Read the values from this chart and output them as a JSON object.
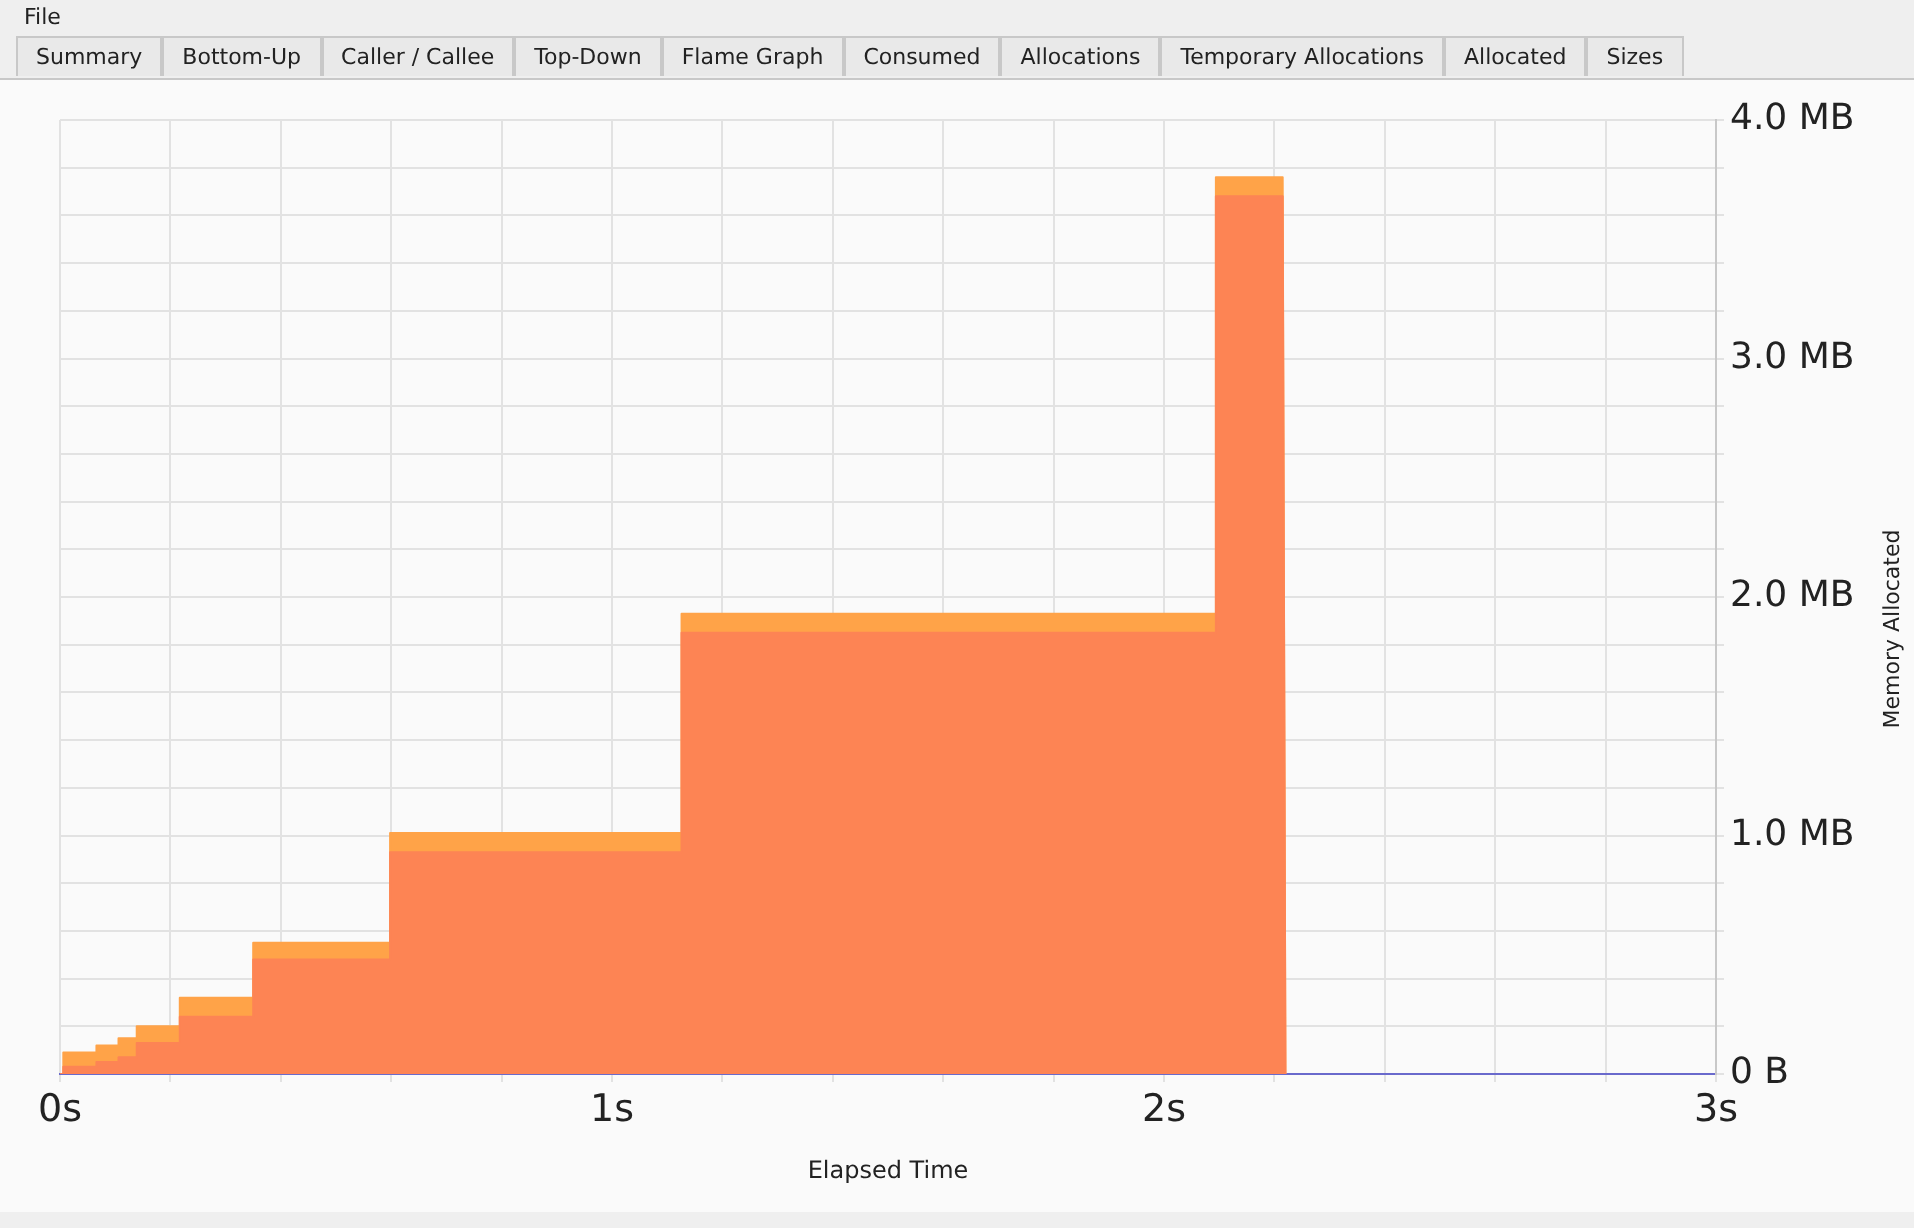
{
  "chart_data": {
    "type": "area",
    "stacked": true,
    "grid": true,
    "xlabel": "Elapsed Time",
    "ylabel": "Memory Allocated",
    "annotations": [
      "File",
      "Summary",
      "Bottom-Up",
      "Caller / Callee",
      "Top-Down",
      "Flame Graph",
      "Consumed",
      "Allocations",
      "Temporary Allocations",
      "Allocated",
      "Sizes"
    ],
    "x": [
      0,
      0.006,
      0.006,
      0.066,
      0.066,
      0.106,
      0.106,
      0.139,
      0.139,
      0.217,
      0.217,
      0.35,
      0.35,
      0.598,
      0.598,
      1.126,
      1.126,
      2.094,
      2.094,
      2.215,
      2.22
    ],
    "xlim": [
      0,
      3
    ],
    "xticks": [
      {
        "value": 0,
        "label": "0s"
      },
      {
        "value": 0.2,
        "label": null
      },
      {
        "value": 0.4,
        "label": null
      },
      {
        "value": 0.6,
        "label": null
      },
      {
        "value": 0.8,
        "label": null
      },
      {
        "value": 1,
        "label": "1s"
      },
      {
        "value": 1.2,
        "label": null
      },
      {
        "value": 1.4,
        "label": null
      },
      {
        "value": 1.6,
        "label": null
      },
      {
        "value": 1.8,
        "label": null
      },
      {
        "value": 2,
        "label": "2s"
      },
      {
        "value": 2.2,
        "label": null
      },
      {
        "value": 2.4,
        "label": null
      },
      {
        "value": 2.6,
        "label": null
      },
      {
        "value": 2.8,
        "label": null
      },
      {
        "value": 3,
        "label": "3s"
      }
    ],
    "ylim": [
      0,
      4
    ],
    "yticks": [
      {
        "value": 0,
        "label": "0 B"
      },
      {
        "value": 0.2,
        "label": null
      },
      {
        "value": 0.4,
        "label": null
      },
      {
        "value": 0.6,
        "label": null
      },
      {
        "value": 0.8,
        "label": null
      },
      {
        "value": 1,
        "label": "1.0 MB"
      },
      {
        "value": 1.2,
        "label": null
      },
      {
        "value": 1.4,
        "label": null
      },
      {
        "value": 1.6,
        "label": null
      },
      {
        "value": 1.8,
        "label": null
      },
      {
        "value": 2,
        "label": "2.0 MB"
      },
      {
        "value": 2.2,
        "label": null
      },
      {
        "value": 2.4,
        "label": null
      },
      {
        "value": 2.6,
        "label": null
      },
      {
        "value": 2.8,
        "label": null
      },
      {
        "value": 3,
        "label": "3.0 MB"
      },
      {
        "value": 3.2,
        "label": null
      },
      {
        "value": 3.4,
        "label": null
      },
      {
        "value": 3.6,
        "label": null
      },
      {
        "value": 3.8,
        "label": null
      },
      {
        "value": 4,
        "label": "4.0 MB"
      }
    ],
    "series": [
      {
        "color": "#fd8454",
        "values": [
          0,
          0,
          0.03,
          0.03,
          0.05,
          0.05,
          0.07,
          0.07,
          0.13,
          0.13,
          0.24,
          0.24,
          0.48,
          0.48,
          0.93,
          0.93,
          1.85,
          1.85,
          3.68,
          3.68,
          0
        ]
      },
      {
        "color": "#ffa348",
        "values": [
          0,
          0,
          0.06,
          0.06,
          0.07,
          0.07,
          0.08,
          0.08,
          0.07,
          0.07,
          0.08,
          0.08,
          0.07,
          0.07,
          0.08,
          0.08,
          0.08,
          0.08,
          0.08,
          0.08,
          0
        ]
      }
    ]
  }
}
